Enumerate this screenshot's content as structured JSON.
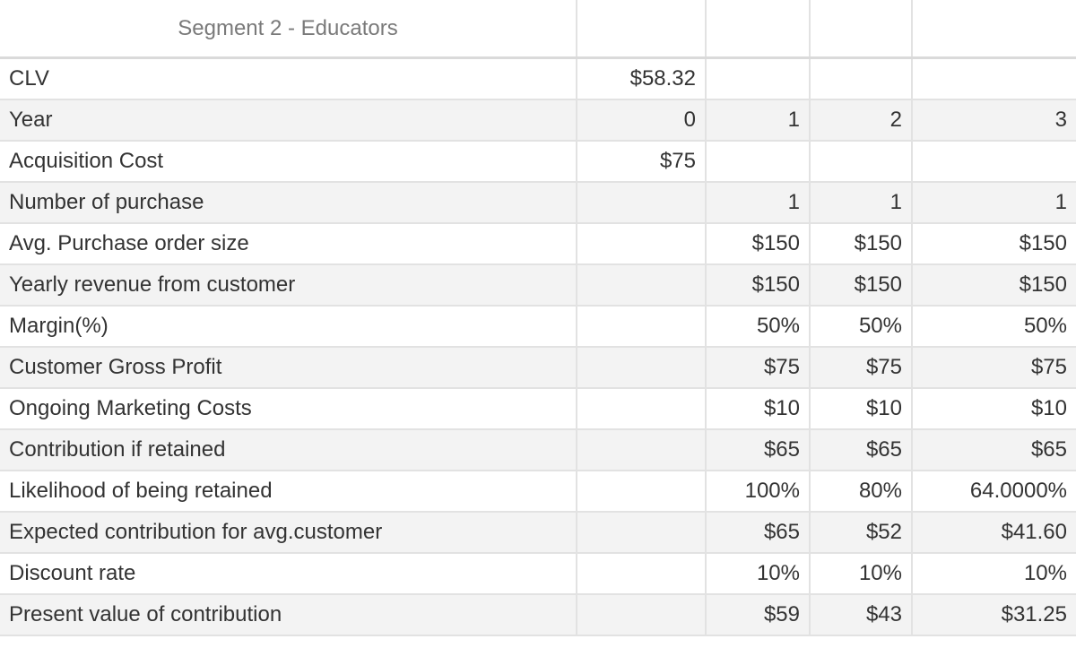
{
  "sheet": {
    "title": "Segment 2 - Educators",
    "rows": [
      {
        "label": "CLV",
        "cells": [
          "$58.32",
          "",
          "",
          ""
        ]
      },
      {
        "label": "Year",
        "cells": [
          "0",
          "1",
          "2",
          "3"
        ]
      },
      {
        "label": "Acquisition Cost",
        "cells": [
          "$75",
          "",
          "",
          ""
        ]
      },
      {
        "label": "Number of purchase",
        "cells": [
          "",
          "1",
          "1",
          "1"
        ]
      },
      {
        "label": "Avg. Purchase order size",
        "cells": [
          "",
          "$150",
          "$150",
          "$150"
        ]
      },
      {
        "label": "Yearly revenue from customer",
        "cells": [
          "",
          "$150",
          "$150",
          "$150"
        ]
      },
      {
        "label": "Margin(%)",
        "cells": [
          "",
          "50%",
          "50%",
          "50%"
        ]
      },
      {
        "label": "Customer Gross Profit",
        "cells": [
          "",
          "$75",
          "$75",
          "$75"
        ]
      },
      {
        "label": "Ongoing Marketing Costs",
        "cells": [
          "",
          "$10",
          "$10",
          "$10"
        ]
      },
      {
        "label": "Contribution if retained",
        "cells": [
          "",
          "$65",
          "$65",
          "$65"
        ]
      },
      {
        "label": "Likelihood of being retained",
        "cells": [
          "",
          "100%",
          "80%",
          "64.0000%"
        ]
      },
      {
        "label": "Expected contribution for avg.customer",
        "cells": [
          "",
          "$65",
          "$52",
          "$41.60"
        ]
      },
      {
        "label": "Discount rate",
        "cells": [
          "",
          "10%",
          "10%",
          "10%"
        ]
      },
      {
        "label": "Present value of contribution",
        "cells": [
          "",
          "$59",
          "$43",
          "$31.25"
        ]
      }
    ]
  }
}
